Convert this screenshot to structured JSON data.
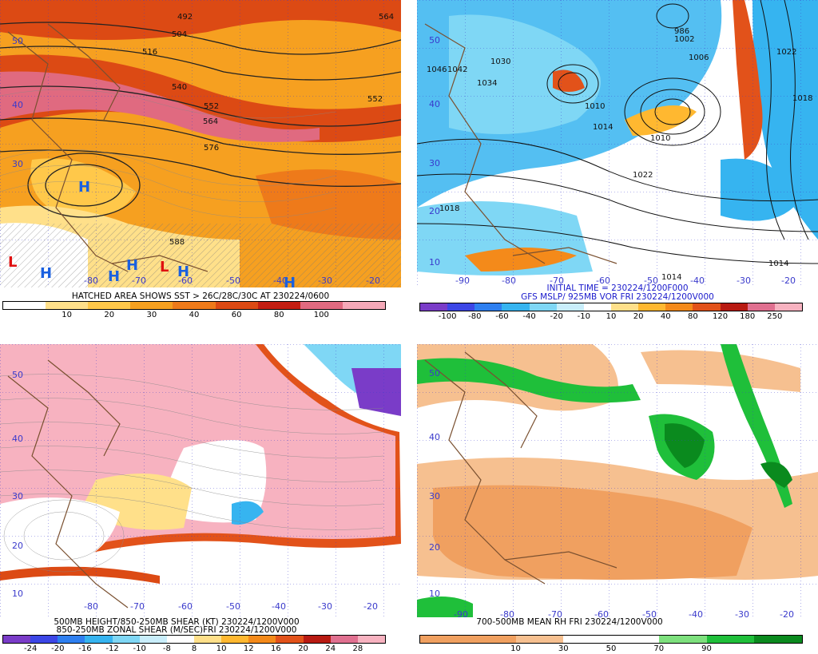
{
  "panels": [
    {
      "id": "sst-500mb",
      "caption_lines": [
        "HATCHED AREA SHOWS SST > 26C/28C/30C AT 230224/0600"
      ],
      "colorbar": {
        "colors": [
          "#ffffff",
          "#ffe08a",
          "#ffc84a",
          "#f6a020",
          "#ee7a1a",
          "#dc4a14",
          "#c41e12",
          "#e06a80",
          "#f5a9b8"
        ],
        "labels": [
          "10",
          "20",
          "30",
          "40",
          "60",
          "80",
          "100"
        ]
      },
      "contour_labels": [
        "492",
        "504",
        "516",
        "540",
        "552",
        "564",
        "576",
        "588",
        "552",
        "564"
      ],
      "lat_labels": [
        "50",
        "40",
        "30"
      ],
      "lon_labels": [
        "-80",
        "-70",
        "-60",
        "-50",
        "-40",
        "-30",
        "-20"
      ],
      "highs_lows": [
        "L",
        "H",
        "H",
        "H",
        "H",
        "L",
        "L",
        "H",
        "H"
      ]
    },
    {
      "id": "mslp-vort",
      "caption_lines": [
        "INITIAL TIME = 230224/1200F000",
        "GFS MSLP/ 925MB VOR FRI 230224/1200V000"
      ],
      "colorbar": {
        "colors": [
          "#7a3cc8",
          "#3c46e6",
          "#2e7ff0",
          "#36b4f0",
          "#7fd7f5",
          "#c9eefb",
          "#ffffff",
          "#ffe08a",
          "#ffb830",
          "#f48a1a",
          "#e2521a",
          "#b81a12",
          "#e07090",
          "#f7b2c0"
        ],
        "labels": [
          "-100",
          "-80",
          "-60",
          "-40",
          "-20",
          "-10",
          "10",
          "20",
          "40",
          "80",
          "120",
          "180",
          "250"
        ]
      },
      "contour_labels": [
        "1030",
        "1046",
        "1042",
        "1034",
        "1002",
        "986",
        "1006",
        "1022",
        "1010",
        "1014",
        "1018",
        "1022",
        "1018",
        "1014",
        "1014",
        "1010"
      ],
      "lat_labels": [
        "50",
        "40",
        "30",
        "20",
        "10"
      ],
      "lon_labels": [
        "-90",
        "-80",
        "-70",
        "-60",
        "-50",
        "-40",
        "-30",
        "-20"
      ]
    },
    {
      "id": "zonal-shear",
      "caption_lines": [
        "500MB HEIGHT/850-250MB SHEAR (KT) 230224/1200V000",
        "850-250MB ZONAL SHEAR (M/SEC)FRI 230224/1200V000"
      ],
      "colorbar": {
        "colors": [
          "#7a3cc8",
          "#3c46e6",
          "#2e7ff0",
          "#36b4f0",
          "#7fd7f5",
          "#c9eefb",
          "#ffffff",
          "#ffe08a",
          "#ffb830",
          "#f48a1a",
          "#e2521a",
          "#b81a12",
          "#e07090",
          "#f7b2c0"
        ],
        "labels": [
          "-24",
          "-20",
          "-16",
          "-12",
          "-10",
          "-8",
          "8",
          "10",
          "12",
          "16",
          "20",
          "24",
          "28"
        ]
      },
      "lat_labels": [
        "50",
        "40",
        "30",
        "20",
        "10"
      ],
      "lon_labels": [
        "-80",
        "-70",
        "-60",
        "-50",
        "-40",
        "-30",
        "-20"
      ]
    },
    {
      "id": "mean-rh",
      "caption_lines": [
        "700-500MB MEAN RH FRI 230224/1200V000"
      ],
      "colorbar": {
        "colors": [
          "#f0a060",
          "#f0a060",
          "#f6c090",
          "#ffffff",
          "#ffffff",
          "#7de07d",
          "#1fbf3a",
          "#0a8a1e"
        ],
        "labels": [
          "10",
          "30",
          "50",
          "70",
          "90"
        ]
      },
      "lat_labels": [
        "50",
        "40",
        "30",
        "20",
        "10"
      ],
      "lon_labels": [
        "-90",
        "-80",
        "-70",
        "-60",
        "-50",
        "-40",
        "-30",
        "-20"
      ]
    }
  ]
}
